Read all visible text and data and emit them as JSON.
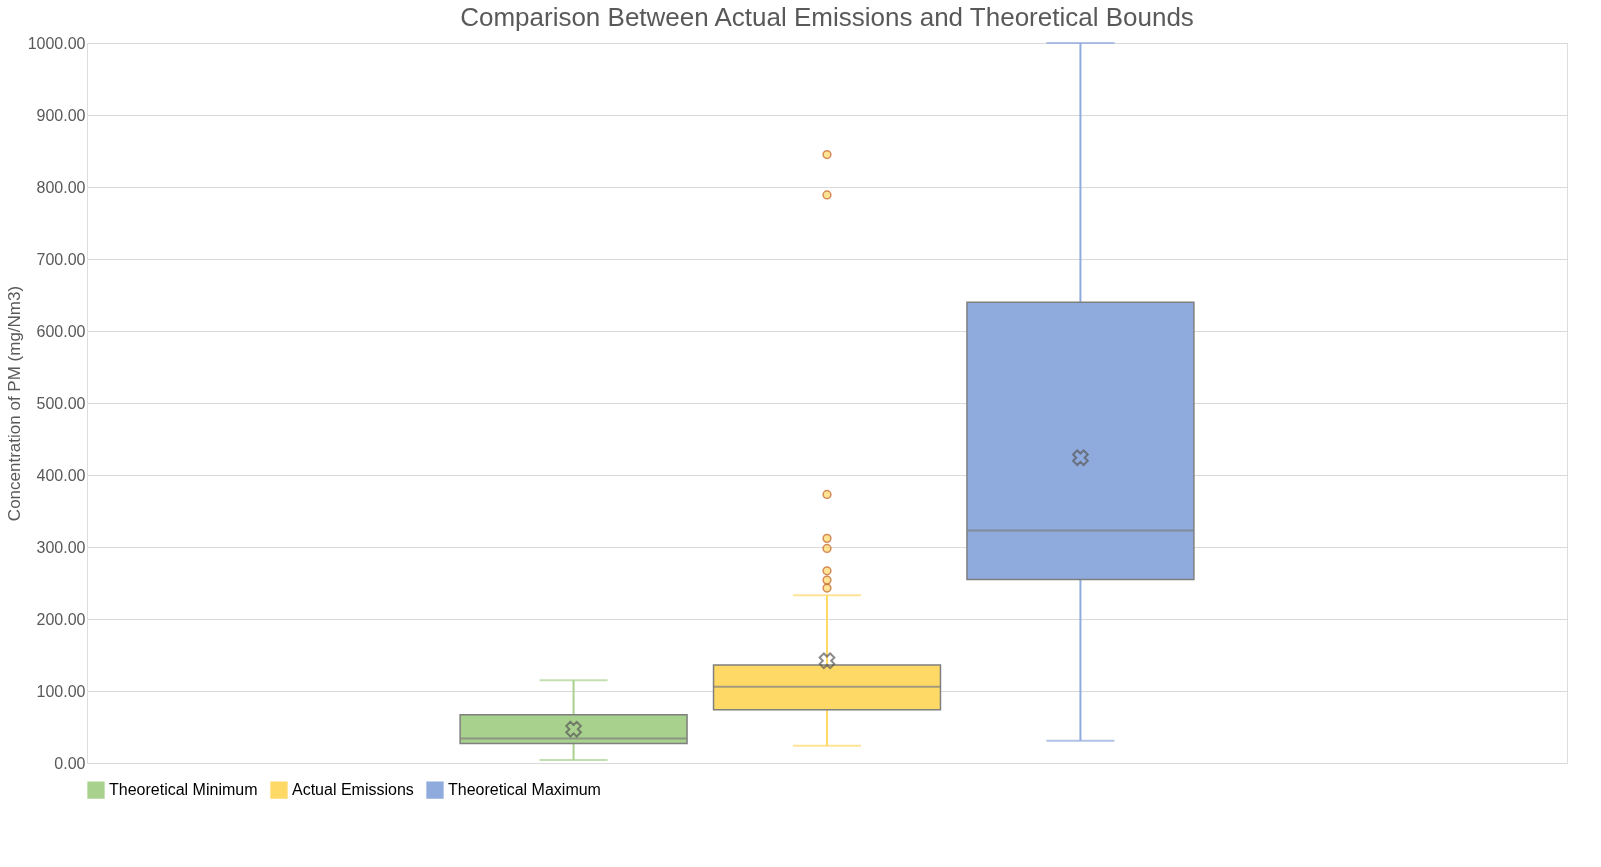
{
  "chart_data": {
    "type": "box",
    "title": "Comparison Between Actual Emissions and Theoretical Bounds",
    "ylabel": "Concentration of PM (mg/Nm3)",
    "categories": [
      null
    ],
    "series": [
      {
        "name": "Theoretical Minimum",
        "color": "#a9d18e",
        "boxes": [
          {
            "low": 4,
            "q1": 27,
            "median": 34,
            "q3": 67,
            "high": 115,
            "mean": 47
          }
        ]
      },
      {
        "name": "Actual Emissions",
        "color": "#ffd966",
        "boxes": [
          {
            "low": 24,
            "q1": 74,
            "median": 106,
            "q3": 136,
            "high": 233,
            "mean": 142,
            "outliers": [
              845,
              789,
              373,
              312,
              298,
              267,
              254,
              243
            ]
          }
        ]
      },
      {
        "name": "Theoretical Maximum",
        "color": "#8faadc",
        "boxes": [
          {
            "low": 31,
            "q1": 255,
            "median": 323,
            "q3": 640,
            "high": 1000,
            "mean": 424
          }
        ]
      }
    ],
    "ylim": [
      0,
      1000
    ],
    "yticks": [
      {
        "value": 0,
        "label": "0.00"
      },
      {
        "value": 100,
        "label": "100.00"
      },
      {
        "value": 200,
        "label": "200.00"
      },
      {
        "value": 300,
        "label": "300.00"
      },
      {
        "value": 400,
        "label": "400.00"
      },
      {
        "value": 500,
        "label": "500.00"
      },
      {
        "value": 600,
        "label": "600.00"
      },
      {
        "value": 700,
        "label": "700.00"
      },
      {
        "value": 800,
        "label": "800.00"
      },
      {
        "value": 900,
        "label": "900.00"
      },
      {
        "value": 1000,
        "label": "1000.00"
      }
    ],
    "grid": "y",
    "legend": "bottom",
    "marker": "cross"
  }
}
